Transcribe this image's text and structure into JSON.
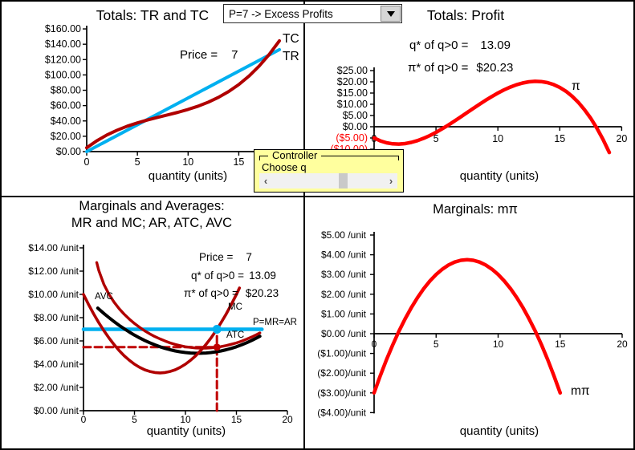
{
  "dropdown": {
    "value": "P=7 -> Excess Profits"
  },
  "controller": {
    "title": "Controller",
    "label": "Choose q",
    "scrollbar": {
      "left_arrow": "‹",
      "right_arrow": "›"
    }
  },
  "charts": {
    "tl": {
      "title": "Totals: TR and TC",
      "price_label": "Price =",
      "price_value": "7",
      "tc_label": "TC",
      "tr_label": "TR",
      "xlabel": "quantity (units)",
      "yticks": [
        "$160.00",
        "$140.00",
        "$120.00",
        "$100.00",
        "$80.00",
        "$60.00",
        "$40.00",
        "$20.00",
        "$0.00"
      ],
      "xticks": [
        "0",
        "5",
        "10",
        "15"
      ]
    },
    "tr": {
      "title": "Totals: Profit",
      "qstar_label": "q* of q>0 =",
      "qstar_value": "13.09",
      "pistar_label": "π* of q>0 =",
      "pistar_value": "$20.23",
      "pi_label": "π",
      "xlabel": "quantity (units)",
      "yticks": [
        "$25.00",
        "$20.00",
        "$15.00",
        "$10.00",
        "$5.00",
        "$0.00",
        "($5.00)",
        "($10.00)"
      ],
      "xticks": [
        "0",
        "5",
        "10",
        "15",
        "20"
      ]
    },
    "bl": {
      "title_line1": "Marginals and Averages:",
      "title_line2": "MR and MC; AR, ATC, AVC",
      "price_label": "Price =",
      "price_value": "7",
      "qstar_label": "q* of q>0 =",
      "qstar_value": "13.09",
      "pistar_label": "π* of q>0 =",
      "pistar_value": "$20.23",
      "avc_label": "AVC",
      "mc_label": "MC",
      "atc_label": "ATC",
      "pmrar_label": "P=MR=AR",
      "xlabel": "quantity (units)",
      "yticks": [
        "$14.00 /unit",
        "$12.00 /unit",
        "$10.00 /unit",
        "$8.00 /unit",
        "$6.00 /unit",
        "$4.00 /unit",
        "$2.00 /unit",
        "$0.00 /unit"
      ],
      "xticks": [
        "0",
        "5",
        "10",
        "15",
        "20"
      ]
    },
    "br": {
      "title": "Marginals: mπ",
      "mpi_label": "mπ",
      "xlabel": "quantity (units)",
      "yticks": [
        "$5.00 /unit",
        "$4.00 /unit",
        "$3.00 /unit",
        "$2.00 /unit",
        "$1.00 /unit",
        "$0.00 /unit",
        "($1.00)/unit",
        "($2.00)/unit",
        "($3.00)/unit",
        "($4.00)/unit"
      ],
      "xticks": [
        "0",
        "5",
        "10",
        "15",
        "20"
      ]
    }
  },
  "chart_data": [
    {
      "type": "line",
      "title": "Totals: TR and TC",
      "xlabel": "quantity (units)",
      "xlim": [
        0,
        20
      ],
      "ylim": [
        0,
        160
      ],
      "price": 7,
      "series": [
        {
          "name": "tr",
          "label": "TR",
          "points": [
            [
              0,
              0
            ],
            [
              19,
              133
            ]
          ]
        },
        {
          "name": "tc",
          "label": "TC",
          "points": [
            [
              0,
              5
            ],
            [
              1,
              14.14
            ],
            [
              2,
              21.72
            ],
            [
              3,
              27.98
            ],
            [
              4,
              33.16
            ],
            [
              5,
              37.5
            ],
            [
              6,
              41.24
            ],
            [
              7,
              44.62
            ],
            [
              8,
              47.88
            ],
            [
              9,
              51.26
            ],
            [
              10,
              55
            ],
            [
              11,
              59.34
            ],
            [
              12,
              64.52
            ],
            [
              13,
              70.78
            ],
            [
              14,
              78.36
            ],
            [
              15,
              87.5
            ],
            [
              16,
              98.44
            ],
            [
              17,
              111.42
            ],
            [
              18,
              126.68
            ],
            [
              19,
              144.46
            ]
          ]
        }
      ]
    },
    {
      "type": "line",
      "title": "Totals: Profit",
      "xlabel": "quantity (units)",
      "xlim": [
        0,
        20
      ],
      "ylim": [
        -10,
        25
      ],
      "q_star": 13.09,
      "pi_star": 20.23,
      "series": [
        {
          "name": "profit",
          "label": "π",
          "points": [
            [
              0,
              -5
            ],
            [
              0.5,
              -6.28
            ],
            [
              1,
              -7.14
            ],
            [
              1.5,
              -7.61
            ],
            [
              2,
              -7.72
            ],
            [
              2.5,
              -7.5
            ],
            [
              3,
              -6.98
            ],
            [
              3.5,
              -6.19
            ],
            [
              4,
              -5.16
            ],
            [
              4.5,
              -3.92
            ],
            [
              5,
              -2.5
            ],
            [
              5.5,
              -0.93
            ],
            [
              6,
              0.76
            ],
            [
              6.5,
              2.54
            ],
            [
              7,
              4.38
            ],
            [
              7.5,
              6.25
            ],
            [
              8,
              8.12
            ],
            [
              8.5,
              9.96
            ],
            [
              9,
              11.74
            ],
            [
              9.5,
              13.43
            ],
            [
              10,
              15
            ],
            [
              10.5,
              16.42
            ],
            [
              11,
              17.66
            ],
            [
              11.5,
              18.69
            ],
            [
              12,
              19.48
            ],
            [
              12.5,
              20
            ],
            [
              13,
              20.22
            ],
            [
              13.5,
              20.11
            ],
            [
              14,
              19.64
            ],
            [
              14.5,
              18.78
            ],
            [
              15,
              17.5
            ],
            [
              15.5,
              15.77
            ],
            [
              16,
              13.56
            ],
            [
              16.5,
              10.84
            ],
            [
              17,
              7.58
            ],
            [
              17.5,
              3.75
            ],
            [
              18,
              -0.68
            ],
            [
              18.5,
              -5.74
            ],
            [
              19,
              -11.46
            ]
          ]
        }
      ]
    },
    {
      "type": "line",
      "title": "Marginals and Averages: MR and MC; AR, ATC, AVC",
      "xlabel": "quantity (units)",
      "xlim": [
        0,
        20
      ],
      "ylim": [
        0,
        14
      ],
      "price": 7,
      "q_star": 13.09,
      "pi_star": 20.23,
      "atc_at_qstar": 5.46,
      "series": [
        {
          "name": "qstar-guide-h",
          "label": "ATC(q*) guide",
          "points": [
            [
              0,
              5.46
            ],
            [
              13.09,
              5.46
            ]
          ]
        },
        {
          "name": "qstar-guide-v",
          "label": "q* guide",
          "points": [
            [
              13.09,
              0
            ],
            [
              13.09,
              6.9
            ]
          ]
        },
        {
          "name": "mr",
          "label": "P=MR=AR",
          "points": [
            [
              0,
              7
            ],
            [
              17.5,
              7
            ]
          ]
        },
        {
          "name": "atc",
          "label": "ATC",
          "points": [
            [
              1.3,
              12.74
            ],
            [
              1.5,
              12.07
            ],
            [
              2,
              10.86
            ],
            [
              2.5,
              10
            ],
            [
              3,
              9.33
            ],
            [
              3.5,
              8.77
            ],
            [
              4,
              8.29
            ],
            [
              4.5,
              7.87
            ],
            [
              5,
              7.5
            ],
            [
              5.5,
              7.17
            ],
            [
              6,
              6.87
            ],
            [
              6.5,
              6.61
            ],
            [
              7,
              6.37
            ],
            [
              7.5,
              6.17
            ],
            [
              8,
              5.99
            ],
            [
              8.5,
              5.83
            ],
            [
              9,
              5.7
            ],
            [
              9.5,
              5.59
            ],
            [
              10,
              5.5
            ],
            [
              10.5,
              5.44
            ],
            [
              11,
              5.39
            ],
            [
              11.5,
              5.38
            ],
            [
              12,
              5.38
            ],
            [
              12.5,
              5.4
            ],
            [
              13,
              5.44
            ],
            [
              13.5,
              5.51
            ],
            [
              14,
              5.6
            ],
            [
              14.5,
              5.71
            ],
            [
              15,
              5.83
            ],
            [
              15.5,
              5.98
            ],
            [
              16,
              6.15
            ],
            [
              16.5,
              6.34
            ],
            [
              17,
              6.55
            ],
            [
              17.3,
              6.69
            ]
          ]
        },
        {
          "name": "avc",
          "label": "AVC",
          "points": [
            [
              1.4,
              8.82
            ],
            [
              2,
              8.36
            ],
            [
              2.5,
              8
            ],
            [
              3,
              7.66
            ],
            [
              3.5,
              7.34
            ],
            [
              4,
              7.04
            ],
            [
              4.5,
              6.76
            ],
            [
              5,
              6.5
            ],
            [
              5.5,
              6.26
            ],
            [
              6,
              6.04
            ],
            [
              6.5,
              5.84
            ],
            [
              7,
              5.66
            ],
            [
              7.5,
              5.5
            ],
            [
              8,
              5.36
            ],
            [
              8.5,
              5.24
            ],
            [
              9,
              5.14
            ],
            [
              9.5,
              5.06
            ],
            [
              10,
              5
            ],
            [
              10.5,
              4.96
            ],
            [
              11,
              4.94
            ],
            [
              11.5,
              4.94
            ],
            [
              12,
              4.96
            ],
            [
              12.5,
              5
            ],
            [
              13,
              5.06
            ],
            [
              13.5,
              5.14
            ],
            [
              14,
              5.24
            ],
            [
              14.5,
              5.36
            ],
            [
              15,
              5.5
            ],
            [
              15.5,
              5.66
            ],
            [
              16,
              5.84
            ],
            [
              16.5,
              6.04
            ],
            [
              17,
              6.26
            ],
            [
              17.3,
              6.4
            ]
          ]
        },
        {
          "name": "mc",
          "label": "MC",
          "points": [
            [
              0,
              10
            ],
            [
              0.5,
              9.13
            ],
            [
              1,
              8.32
            ],
            [
              1.5,
              7.57
            ],
            [
              2,
              6.88
            ],
            [
              2.5,
              6.25
            ],
            [
              3,
              5.68
            ],
            [
              3.5,
              5.17
            ],
            [
              4,
              4.72
            ],
            [
              4.5,
              4.33
            ],
            [
              5,
              4
            ],
            [
              5.5,
              3.73
            ],
            [
              6,
              3.52
            ],
            [
              6.5,
              3.37
            ],
            [
              7,
              3.28
            ],
            [
              7.5,
              3.25
            ],
            [
              8,
              3.28
            ],
            [
              8.5,
              3.37
            ],
            [
              9,
              3.52
            ],
            [
              9.5,
              3.73
            ],
            [
              10,
              4
            ],
            [
              10.5,
              4.33
            ],
            [
              11,
              4.72
            ],
            [
              11.5,
              5.17
            ],
            [
              12,
              5.68
            ],
            [
              12.5,
              6.25
            ],
            [
              13,
              6.88
            ],
            [
              13.5,
              7.57
            ],
            [
              14,
              8.32
            ],
            [
              14.5,
              9.13
            ],
            [
              15,
              10
            ],
            [
              15.3,
              10.55
            ]
          ]
        }
      ],
      "markers": [
        {
          "name": "qstar-price-dot",
          "x": 13.09,
          "y": 7
        },
        {
          "name": "qstar-atc-dot",
          "x": 13.09,
          "y": 5.46
        }
      ]
    },
    {
      "type": "line",
      "title": "Marginals: mπ",
      "xlabel": "quantity (units)",
      "xlim": [
        0,
        20
      ],
      "ylim": [
        -4,
        5
      ],
      "series": [
        {
          "name": "mpi",
          "label": "mπ",
          "points": [
            [
              0,
              -3
            ],
            [
              0.5,
              -2.13
            ],
            [
              1,
              -1.32
            ],
            [
              1.5,
              -0.57
            ],
            [
              2,
              0.12
            ],
            [
              2.5,
              0.75
            ],
            [
              3,
              1.32
            ],
            [
              3.5,
              1.83
            ],
            [
              4,
              2.28
            ],
            [
              4.5,
              2.67
            ],
            [
              5,
              3
            ],
            [
              5.5,
              3.27
            ],
            [
              6,
              3.48
            ],
            [
              6.5,
              3.63
            ],
            [
              7,
              3.72
            ],
            [
              7.5,
              3.75
            ],
            [
              8,
              3.72
            ],
            [
              8.5,
              3.63
            ],
            [
              9,
              3.48
            ],
            [
              9.5,
              3.27
            ],
            [
              10,
              3
            ],
            [
              10.5,
              2.67
            ],
            [
              11,
              2.28
            ],
            [
              11.5,
              1.83
            ],
            [
              12,
              1.32
            ],
            [
              12.5,
              0.75
            ],
            [
              13,
              0.12
            ],
            [
              13.5,
              -0.57
            ],
            [
              14,
              -1.32
            ],
            [
              14.5,
              -2.13
            ],
            [
              15,
              -3
            ]
          ]
        }
      ]
    }
  ],
  "colors": {
    "dark_red": "#B00000",
    "bright_red": "#FF0000",
    "blue": "#00B0F0",
    "guide_red": "#C00000",
    "negative_label_red": "#FF0000",
    "controller_yellow": "#FFFF9E"
  }
}
